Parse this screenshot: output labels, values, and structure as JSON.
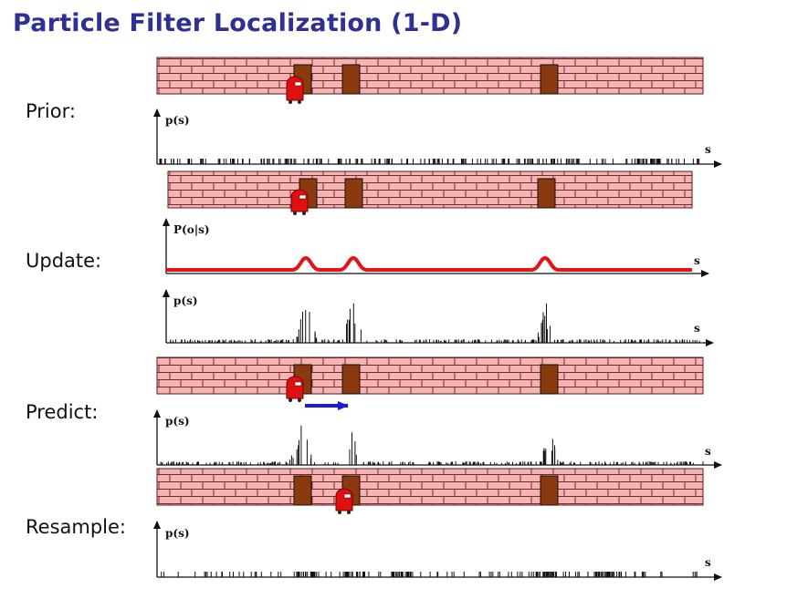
{
  "title": "Particle Filter Localization (1-D)",
  "steps": {
    "prior": "Prior:",
    "update": "Update:",
    "predict": "Predict:",
    "resample": "Resample:"
  },
  "plots": {
    "prior_y": "p(s)",
    "update_obs_y": "P(o|s)",
    "update_y": "p(s)",
    "predict_y": "p(s)",
    "resample_y": "p(s)",
    "x": "s"
  },
  "colors": {
    "title": "#2e3192",
    "brick": "#f4b4b4",
    "mortar": "#7a2a2a",
    "door": "#8b3a10",
    "robot": "#e01010",
    "likelihood": "#e51414",
    "motion_arrow": "#1a1adc"
  },
  "icons": [
    "robot-icon",
    "door-icon",
    "motion-arrow-icon"
  ]
}
